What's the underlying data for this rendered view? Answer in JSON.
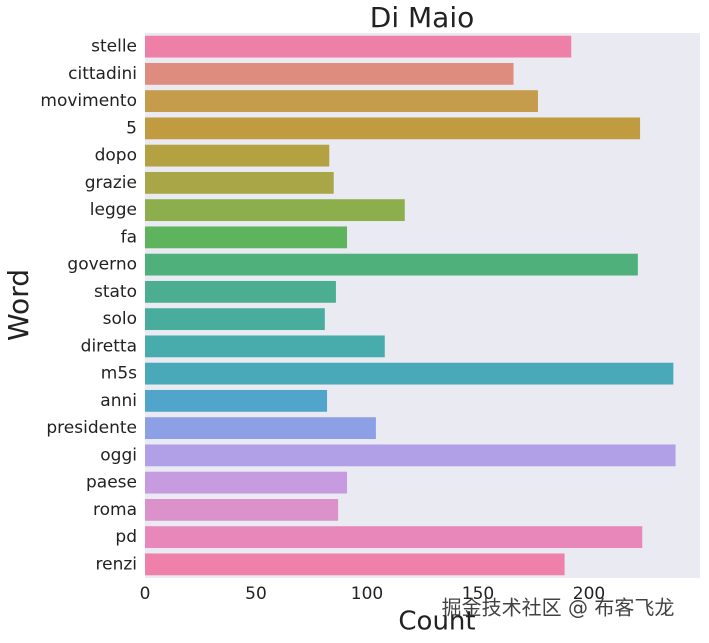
{
  "chart_data": {
    "type": "barh",
    "title": "Di Maio",
    "xlabel": "Count",
    "ylabel": "Word",
    "categories": [
      "stelle",
      "cittadini",
      "movimento",
      "5",
      "dopo",
      "grazie",
      "legge",
      "fa",
      "governo",
      "stato",
      "solo",
      "diretta",
      "m5s",
      "anni",
      "presidente",
      "oggi",
      "paese",
      "roma",
      "pd",
      "renzi"
    ],
    "values": [
      192,
      166,
      177,
      223,
      83,
      85,
      117,
      91,
      222,
      86,
      81,
      108,
      238,
      82,
      104,
      239,
      91,
      87,
      224,
      189
    ],
    "colors": [
      "#ee7fa6",
      "#de8c7e",
      "#c59b4c",
      "#c09b3f",
      "#b3a142",
      "#a8a646",
      "#8cae4c",
      "#5db45c",
      "#4fb07c",
      "#4cae90",
      "#49ad9e",
      "#47acab",
      "#4aa9b9",
      "#52a5ca",
      "#8d9fe5",
      "#b19fe8",
      "#c79be0",
      "#db92cb",
      "#e887b9",
      "#ee80aa"
    ],
    "xlim": [
      0,
      250
    ],
    "xticks": [
      0,
      50,
      100,
      150,
      200
    ],
    "grid": false,
    "watermark": "掘金技术社区 @ 布客飞龙"
  }
}
